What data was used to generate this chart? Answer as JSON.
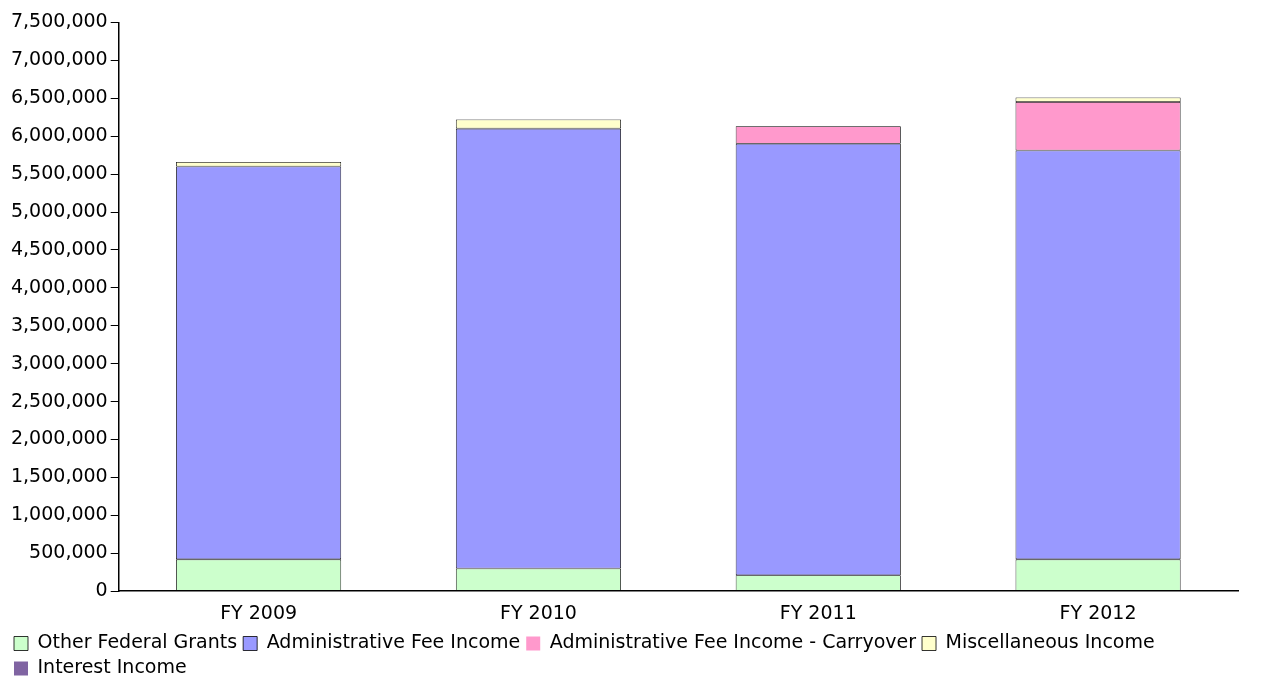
{
  "chart_data": {
    "type": "bar",
    "stacked": true,
    "categories": [
      "FY 2009",
      "FY 2010",
      "FY 2011",
      "FY 2012"
    ],
    "series": [
      {
        "name": "Other Federal Grants",
        "color": "#ccffcc",
        "values": [
          420000,
          300000,
          210000,
          420000
        ]
      },
      {
        "name": "Administrative Fee Income",
        "color": "#9999ff",
        "values": [
          5180000,
          5800000,
          5690000,
          5390000
        ]
      },
      {
        "name": "Administrative Fee Income - Carryover",
        "color": "#ff99cc",
        "values": [
          0,
          0,
          230000,
          640000
        ]
      },
      {
        "name": "Miscellaneous Income",
        "color": "#ffffcc",
        "values": [
          60000,
          120000,
          0,
          60000
        ]
      },
      {
        "name": "Interest Income",
        "color": "#8064a2",
        "values": [
          0,
          0,
          0,
          0
        ]
      }
    ],
    "ylim": [
      0,
      7500000
    ],
    "yticks": [
      0,
      {
        "value": 500000,
        "label": "500,000"
      },
      {
        "value": 1000000,
        "label": "1,000,000"
      },
      {
        "value": 1500000,
        "label": "1,500,000"
      },
      {
        "value": 2000000,
        "label": "2,000,000"
      },
      {
        "value": 2500000,
        "label": "2,500,000"
      },
      {
        "value": 3000000,
        "label": "3,000,000"
      },
      {
        "value": 3500000,
        "label": "3,500,000"
      },
      {
        "value": 4000000,
        "label": "4,000,000"
      },
      {
        "value": 4500000,
        "label": "4,500,000"
      },
      {
        "value": 5000000,
        "label": "5,000,000"
      },
      {
        "value": 5500000,
        "label": "5,500,000"
      },
      {
        "value": 6000000,
        "label": "6,000,000"
      },
      {
        "value": 6500000,
        "label": "6,500,000"
      },
      {
        "value": 7000000,
        "label": "7,000,000"
      },
      {
        "value": 7500000,
        "label": "7,500,000"
      }
    ],
    "grid": false,
    "legend": "bottom"
  }
}
